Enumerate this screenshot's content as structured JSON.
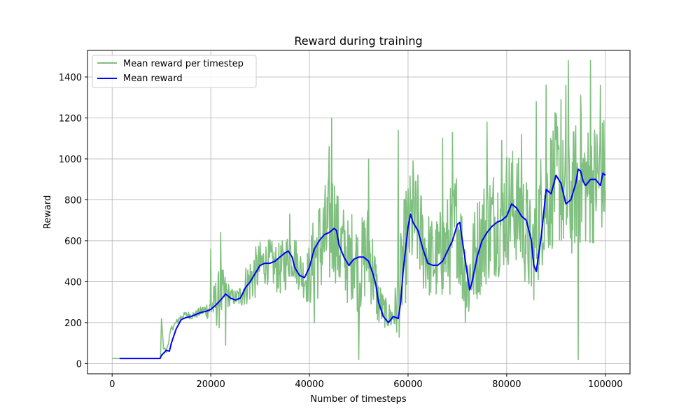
{
  "chart_data": {
    "type": "line",
    "title": "Reward during training",
    "xlabel": "Number of timesteps",
    "ylabel": "Reward",
    "xlim": [
      -5000,
      105000
    ],
    "ylim": [
      -50,
      1530
    ],
    "xticks": [
      0,
      20000,
      40000,
      60000,
      80000,
      100000
    ],
    "xtick_labels": [
      "0",
      "20000",
      "40000",
      "60000",
      "80000",
      "100000"
    ],
    "yticks": [
      0,
      200,
      400,
      600,
      800,
      1000,
      1200,
      1400
    ],
    "ytick_labels": [
      "0",
      "200",
      "400",
      "600",
      "800",
      "1000",
      "1200",
      "1400"
    ],
    "grid": true,
    "legend_position": "top-left",
    "series": [
      {
        "name": "Mean reward per timestep",
        "color": "#7fbf7f",
        "style": "noisy",
        "x": [
          0,
          9800,
          10000,
          10400,
          11000,
          12000,
          13000,
          14000,
          15000,
          16000,
          17000,
          18000,
          19000,
          20000,
          21000,
          22000,
          23000,
          24000,
          25000,
          26000,
          27000,
          28000,
          29000,
          30000,
          31000,
          32000,
          33000,
          34000,
          35000,
          36000,
          37000,
          38000,
          39000,
          40000,
          41000,
          42000,
          43000,
          44000,
          45000,
          46000,
          47000,
          48000,
          49000,
          50000,
          51000,
          52000,
          53000,
          54000,
          55000,
          56000,
          57000,
          58000,
          59000,
          60000,
          61000,
          62000,
          63000,
          64000,
          65000,
          66000,
          67000,
          68000,
          69000,
          70000,
          71000,
          72000,
          73000,
          74000,
          75000,
          76000,
          77000,
          78000,
          79000,
          80000,
          81000,
          82000,
          83000,
          84000,
          85000,
          86000,
          87000,
          88000,
          89000,
          90000,
          91000,
          92000,
          93000,
          94000,
          95000,
          96000,
          97000,
          98000,
          99000,
          100000
        ],
        "y": [
          25,
          25,
          220,
          80,
          60,
          170,
          200,
          230,
          240,
          235,
          240,
          255,
          260,
          270,
          300,
          320,
          340,
          330,
          320,
          330,
          380,
          410,
          440,
          480,
          490,
          500,
          470,
          460,
          480,
          540,
          520,
          460,
          420,
          430,
          530,
          560,
          600,
          640,
          700,
          560,
          560,
          480,
          560,
          440,
          520,
          560,
          440,
          300,
          260,
          230,
          230,
          300,
          500,
          640,
          700,
          680,
          580,
          540,
          500,
          510,
          540,
          570,
          620,
          700,
          520,
          380,
          480,
          560,
          620,
          660,
          690,
          700,
          720,
          760,
          780,
          760,
          700,
          640,
          520,
          620,
          760,
          820,
          860,
          920,
          860,
          780,
          800,
          880,
          900,
          880,
          860,
          900,
          920,
          920
        ],
        "spread": [
          0,
          0,
          0,
          10,
          10,
          15,
          15,
          15,
          15,
          20,
          20,
          25,
          40,
          60,
          120,
          160,
          100,
          40,
          40,
          60,
          100,
          120,
          130,
          120,
          110,
          110,
          120,
          130,
          140,
          130,
          120,
          110,
          110,
          160,
          220,
          260,
          280,
          300,
          280,
          240,
          220,
          220,
          230,
          220,
          230,
          240,
          200,
          130,
          80,
          70,
          80,
          200,
          280,
          280,
          260,
          250,
          240,
          220,
          210,
          220,
          240,
          260,
          280,
          280,
          260,
          240,
          240,
          260,
          270,
          280,
          280,
          280,
          290,
          300,
          290,
          280,
          280,
          280,
          260,
          280,
          300,
          320,
          320,
          320,
          300,
          290,
          300,
          320,
          330,
          320,
          300,
          300,
          300,
          300
        ],
        "spikes": [
          [
            20000,
            560
          ],
          [
            22000,
            640
          ],
          [
            23000,
            90
          ],
          [
            36000,
            730
          ],
          [
            41000,
            200
          ],
          [
            44000,
            1060
          ],
          [
            44500,
            1200
          ],
          [
            50000,
            20
          ],
          [
            52000,
            1000
          ],
          [
            58000,
            1140
          ],
          [
            61000,
            990
          ],
          [
            67000,
            1100
          ],
          [
            69000,
            1130
          ],
          [
            76000,
            1180
          ],
          [
            79000,
            1090
          ],
          [
            83000,
            1120
          ],
          [
            86000,
            1280
          ],
          [
            88000,
            1360
          ],
          [
            91000,
            1290
          ],
          [
            92000,
            1360
          ],
          [
            92500,
            1480
          ],
          [
            94500,
            20
          ],
          [
            95000,
            1310
          ],
          [
            97000,
            1480
          ],
          [
            99000,
            1360
          ]
        ]
      },
      {
        "name": "Mean reward",
        "color": "#0000ff",
        "style": "smooth",
        "x": [
          1500,
          9700,
          10000,
          11000,
          11600,
          12000,
          13000,
          14000,
          15000,
          16000,
          17000,
          18000,
          19000,
          20000,
          21000,
          22000,
          23000,
          24000,
          25000,
          26000,
          27000,
          28000,
          29000,
          30000,
          31000,
          32000,
          33000,
          34000,
          35000,
          35700,
          36500,
          37000,
          38000,
          39000,
          40000,
          41000,
          42000,
          43000,
          44000,
          45000,
          45500,
          46000,
          47000,
          48000,
          49000,
          50000,
          51000,
          52000,
          53000,
          53500,
          54000,
          55000,
          56000,
          57000,
          58000,
          58500,
          59000,
          60000,
          60500,
          61000,
          62000,
          63000,
          64000,
          65000,
          66000,
          67000,
          68000,
          69000,
          70000,
          70500,
          71000,
          72000,
          72500,
          73000,
          74000,
          75000,
          76000,
          77000,
          78000,
          79000,
          80000,
          81000,
          82000,
          83000,
          84000,
          85000,
          85500,
          86000,
          87000,
          88000,
          88500,
          89000,
          90000,
          91000,
          92000,
          93000,
          94000,
          94500,
          95000,
          95500,
          96000,
          97000,
          98000,
          99000,
          99500,
          100000
        ],
        "y": [
          25,
          25,
          40,
          65,
          60,
          100,
          170,
          215,
          225,
          230,
          240,
          250,
          255,
          265,
          285,
          310,
          340,
          320,
          310,
          320,
          370,
          400,
          440,
          480,
          490,
          490,
          500,
          520,
          540,
          550,
          520,
          470,
          430,
          420,
          470,
          560,
          600,
          630,
          640,
          660,
          650,
          580,
          520,
          480,
          510,
          520,
          520,
          500,
          430,
          380,
          300,
          230,
          200,
          230,
          220,
          300,
          450,
          670,
          730,
          690,
          650,
          560,
          490,
          480,
          480,
          500,
          550,
          600,
          680,
          690,
          600,
          440,
          360,
          400,
          520,
          600,
          640,
          670,
          690,
          700,
          720,
          780,
          760,
          720,
          700,
          600,
          480,
          450,
          620,
          850,
          840,
          830,
          920,
          880,
          780,
          800,
          880,
          950,
          940,
          890,
          870,
          900,
          900,
          870,
          930,
          920
        ]
      }
    ]
  }
}
